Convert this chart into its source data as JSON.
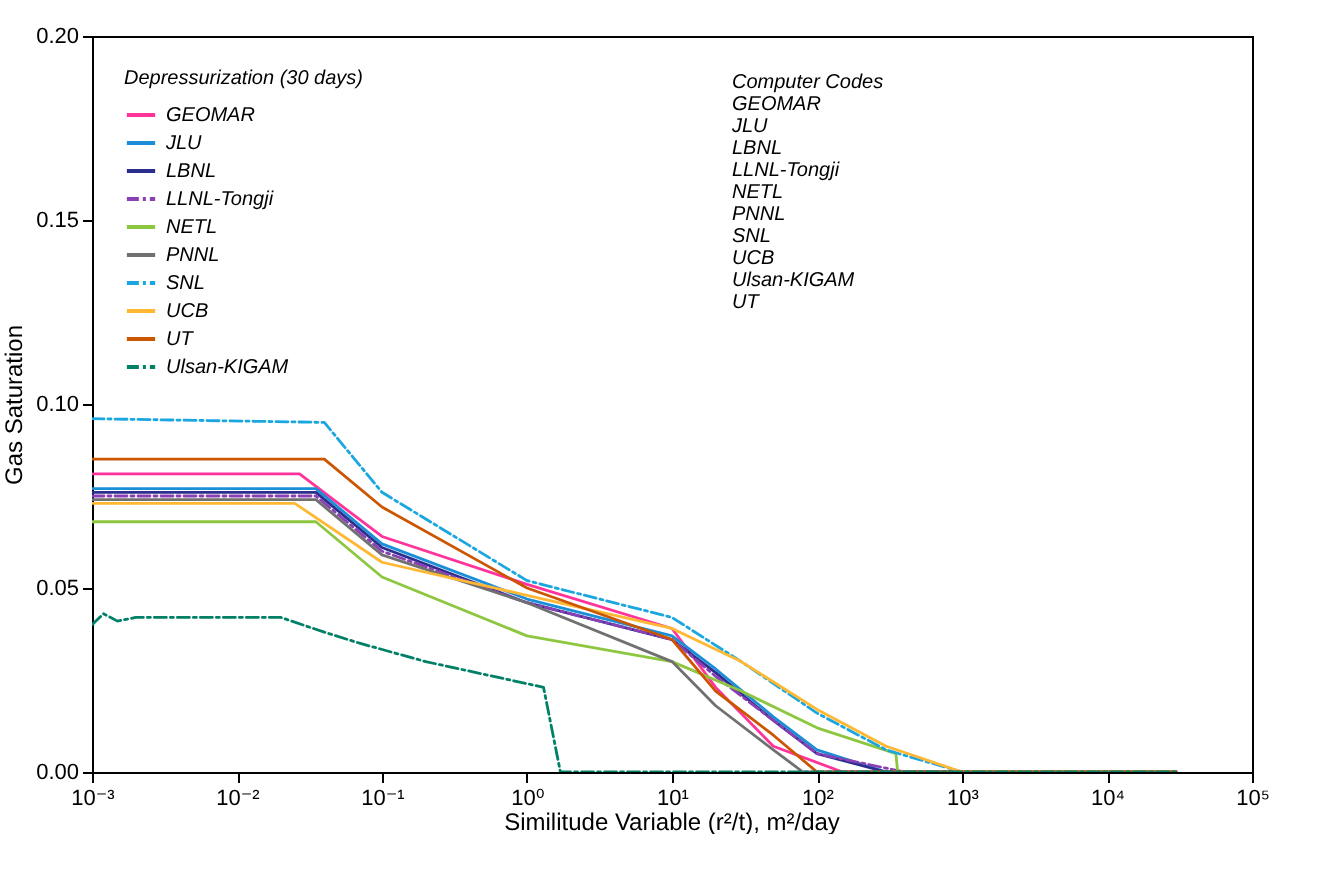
{
  "chart_data": {
    "type": "line",
    "xlabel": "Similitude Variable (r²/t), m²/day",
    "ylabel": "Gas Saturation",
    "log": "x",
    "xlim": [
      0.001,
      100000
    ],
    "xticks": [
      {
        "value": 0.001,
        "label": "10⁻³"
      },
      {
        "value": 0.01,
        "label": "10⁻²"
      },
      {
        "value": 0.1,
        "label": "10⁻¹"
      },
      {
        "value": 1,
        "label": "10⁰"
      },
      {
        "value": 10,
        "label": "10¹"
      },
      {
        "value": 100,
        "label": "10²"
      },
      {
        "value": 1000,
        "label": "10³"
      },
      {
        "value": 10000,
        "label": "10⁴"
      },
      {
        "value": 100000,
        "label": "10⁵"
      }
    ],
    "ylim": [
      0,
      0.2
    ],
    "yticks": [
      {
        "value": 0,
        "label": "0.00"
      },
      {
        "value": 0.05,
        "label": "0.05"
      },
      {
        "value": 0.1,
        "label": "0.10"
      },
      {
        "value": 0.15,
        "label": "0.15"
      },
      {
        "value": 0.2,
        "label": "0.20"
      }
    ],
    "grid": false,
    "legend": "top left",
    "legend_title": "Depressurization (30 days)",
    "annotations": [
      "Computer Codes",
      "GEOMAR",
      "JLU",
      "LBNL",
      "LLNL-Tongji",
      "NETL",
      "PNNL",
      "SNL",
      "UCB",
      "Ulsan-KIGAM",
      "UT"
    ],
    "series": [
      {
        "name": "GEOMAR",
        "color": "#ff3399",
        "line_style": "solid",
        "x": [
          0.001,
          0.027,
          0.1,
          1,
          10,
          20,
          50,
          150,
          30000
        ],
        "values": [
          0.081,
          0.081,
          0.064,
          0.051,
          0.039,
          0.023,
          0.007,
          0,
          0
        ]
      },
      {
        "name": "JLU",
        "color": "#1a8fd8",
        "line_style": "solid",
        "x": [
          0.001,
          0.035,
          0.1,
          1,
          10,
          20,
          50,
          100,
          300,
          30000
        ],
        "values": [
          0.077,
          0.077,
          0.062,
          0.047,
          0.037,
          0.028,
          0.015,
          0.006,
          0,
          0
        ]
      },
      {
        "name": "LBNL",
        "color": "#2b2e8c",
        "line_style": "solid",
        "x": [
          0.001,
          0.035,
          0.1,
          1,
          10,
          20,
          50,
          100,
          300,
          30000
        ],
        "values": [
          0.076,
          0.076,
          0.061,
          0.046,
          0.036,
          0.027,
          0.014,
          0.005,
          0,
          0
        ]
      },
      {
        "name": "LLNL-Tongji",
        "color": "#8a3fb5",
        "line_style": "dashed",
        "x": [
          0.001,
          0.035,
          0.1,
          1,
          10,
          20,
          50,
          100,
          400,
          30000
        ],
        "values": [
          0.075,
          0.075,
          0.06,
          0.046,
          0.036,
          0.026,
          0.014,
          0.005,
          0,
          0
        ]
      },
      {
        "name": "NETL",
        "color": "#8dc63f",
        "line_style": "solid",
        "x": [
          0.001,
          0.035,
          0.1,
          1,
          10,
          30,
          100,
          350,
          360,
          30000
        ],
        "values": [
          0.068,
          0.068,
          0.053,
          0.037,
          0.03,
          0.022,
          0.012,
          0.005,
          0,
          0
        ]
      },
      {
        "name": "PNNL",
        "color": "#707070",
        "line_style": "solid",
        "x": [
          0.001,
          0.035,
          0.1,
          1,
          10,
          20,
          50,
          80,
          30000
        ],
        "values": [
          0.074,
          0.074,
          0.059,
          0.046,
          0.03,
          0.018,
          0.006,
          0,
          0
        ]
      },
      {
        "name": "SNL",
        "color": "#1aa7e0",
        "line_style": "dashed",
        "x": [
          0.001,
          0.04,
          0.1,
          1,
          10,
          30,
          100,
          300,
          1000,
          30000
        ],
        "values": [
          0.096,
          0.095,
          0.076,
          0.052,
          0.042,
          0.03,
          0.016,
          0.006,
          0,
          0
        ]
      },
      {
        "name": "UCB",
        "color": "#ffb833",
        "line_style": "solid",
        "x": [
          0.001,
          0.025,
          0.1,
          1,
          10,
          30,
          100,
          300,
          1000,
          30000
        ],
        "values": [
          0.073,
          0.073,
          0.057,
          0.048,
          0.039,
          0.03,
          0.017,
          0.007,
          0,
          0
        ]
      },
      {
        "name": "UT",
        "color": "#cc5500",
        "line_style": "solid",
        "x": [
          0.001,
          0.04,
          0.1,
          1,
          10,
          20,
          50,
          100,
          30000
        ],
        "values": [
          0.085,
          0.085,
          0.072,
          0.05,
          0.036,
          0.022,
          0.01,
          0,
          0
        ]
      },
      {
        "name": "Ulsan-KIGAM",
        "color": "#008066",
        "line_style": "dashed",
        "x": [
          0.001,
          0.0012,
          0.0015,
          0.002,
          0.02,
          0.04,
          0.07,
          0.2,
          1,
          1.3,
          1.7,
          30000
        ],
        "values": [
          0.04,
          0.043,
          0.041,
          0.042,
          0.042,
          0.038,
          0.035,
          0.03,
          0.024,
          0.023,
          0,
          0
        ]
      }
    ]
  }
}
